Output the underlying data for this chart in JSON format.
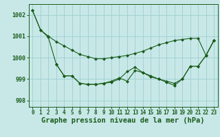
{
  "background_color": "#c8e8e8",
  "grid_color": "#9ecece",
  "line_color": "#1a5c1a",
  "title": "Graphe pression niveau de la mer (hPa)",
  "xlim": [
    -0.5,
    23.5
  ],
  "ylim": [
    997.7,
    1002.5
  ],
  "yticks": [
    998,
    999,
    1000,
    1001,
    1002
  ],
  "xticks": [
    0,
    1,
    2,
    3,
    4,
    5,
    6,
    7,
    8,
    9,
    10,
    11,
    12,
    13,
    14,
    15,
    16,
    17,
    18,
    19,
    20,
    21,
    22,
    23
  ],
  "series": [
    {
      "x": [
        0,
        1,
        2,
        3,
        4,
        5,
        6,
        7,
        8,
        9,
        10,
        11,
        12,
        13,
        14,
        15,
        16,
        17,
        18,
        19,
        20,
        21,
        22,
        23
      ],
      "y": [
        1002.2,
        1001.3,
        1001.0,
        1000.75,
        1000.55,
        1000.35,
        1000.15,
        1000.05,
        999.95,
        999.95,
        1000.0,
        1000.05,
        1000.1,
        1000.2,
        1000.3,
        1000.45,
        1000.6,
        1000.7,
        1000.8,
        1000.85,
        1000.9,
        1000.9,
        1000.1,
        1000.8
      ]
    },
    {
      "x": [
        0,
        1,
        2,
        3,
        4,
        5,
        6,
        7,
        8,
        9,
        10,
        11,
        12,
        13,
        14,
        15,
        16,
        17,
        18,
        19,
        20,
        21,
        22,
        23
      ],
      "y": [
        1002.2,
        1001.3,
        1000.95,
        999.7,
        999.15,
        999.15,
        998.8,
        998.75,
        998.75,
        998.8,
        998.85,
        999.0,
        999.35,
        999.55,
        999.3,
        999.1,
        999.0,
        998.9,
        998.8,
        999.0,
        999.6,
        999.6,
        1000.1,
        1000.8
      ]
    },
    {
      "x": [
        3,
        4,
        5,
        6,
        7,
        8,
        9,
        10,
        11,
        12,
        13,
        14,
        15,
        16,
        17,
        18,
        19,
        20,
        21,
        22,
        23
      ],
      "y": [
        999.7,
        999.15,
        999.15,
        998.8,
        998.75,
        998.75,
        998.8,
        998.9,
        999.05,
        998.9,
        999.4,
        999.3,
        999.15,
        999.0,
        998.85,
        998.7,
        999.0,
        999.6,
        999.6,
        1000.1,
        1000.8
      ]
    }
  ],
  "title_fontsize": 7.5,
  "tick_fontsize": 5.5,
  "marker": "D",
  "markersize": 2.0,
  "linewidth": 0.8
}
